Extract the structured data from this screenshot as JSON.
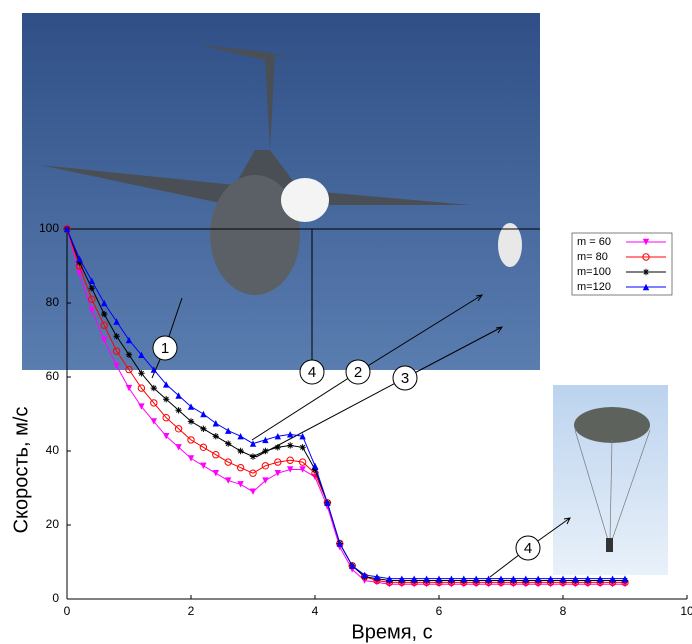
{
  "chart_data": {
    "type": "line",
    "xlabel": "Время, с",
    "ylabel": "Скорость, м/с",
    "xlim": [
      0,
      10
    ],
    "ylim": [
      0,
      100
    ],
    "xticks": [
      0,
      2,
      4,
      6,
      8,
      10
    ],
    "yticks": [
      0,
      20,
      40,
      60,
      80,
      100
    ],
    "legend": "upper right",
    "annotations": [
      "1",
      "2",
      "3",
      "4",
      "4"
    ],
    "x": [
      0,
      0.2,
      0.4,
      0.6,
      0.8,
      1,
      1.2,
      1.4,
      1.6,
      1.8,
      2,
      2.2,
      2.4,
      2.6,
      2.8,
      3,
      3.2,
      3.4,
      3.6,
      3.8,
      4,
      4.2,
      4.4,
      4.6,
      4.8,
      5,
      5.2,
      5.4,
      5.6,
      5.8,
      6,
      6.2,
      6.4,
      6.6,
      6.8,
      7,
      7.2,
      7.4,
      7.6,
      7.8,
      8,
      8.2,
      8.4,
      8.6,
      8.8,
      9
    ],
    "series": [
      {
        "name": "m = 60",
        "color": "#ff00ff",
        "marker": "v",
        "values": [
          100,
          88,
          78,
          70,
          63,
          57,
          52,
          48,
          44,
          41,
          38,
          36,
          34,
          32,
          31,
          29,
          32,
          34,
          35,
          35,
          33,
          25,
          14,
          8,
          5,
          4.5,
          4,
          4,
          4,
          4,
          4,
          4,
          4,
          4,
          4,
          4,
          4,
          4,
          4,
          4,
          4,
          4,
          4,
          4,
          4,
          4
        ]
      },
      {
        "name": "m= 80",
        "color": "#ff0000",
        "marker": "o",
        "values": [
          100,
          90,
          81,
          74,
          67,
          62,
          57,
          53,
          49,
          46,
          43,
          41,
          39,
          37,
          35.5,
          34,
          36,
          37,
          37.5,
          37,
          34,
          26,
          15,
          9,
          6,
          5,
          4.5,
          4.5,
          4.5,
          4.5,
          4.5,
          4.5,
          4.5,
          4.5,
          4.5,
          4.5,
          4.5,
          4.5,
          4.5,
          4.5,
          4.5,
          4.5,
          4.5,
          4.5,
          4.5,
          4.5
        ]
      },
      {
        "name": "m=100",
        "color": "#000000",
        "marker": "*",
        "values": [
          100,
          91,
          84,
          77,
          71,
          66,
          61,
          57,
          54,
          51,
          48,
          46,
          44,
          42,
          40,
          38.5,
          40,
          41,
          41.5,
          41,
          35,
          26,
          15,
          9,
          6,
          5.5,
          5,
          5,
          5,
          5,
          5,
          5,
          5,
          5,
          5,
          5,
          5,
          5,
          5,
          5,
          5,
          5,
          5,
          5,
          5,
          5
        ]
      },
      {
        "name": "m=120",
        "color": "#0000ff",
        "marker": "^",
        "values": [
          100,
          92,
          86,
          80,
          75,
          70,
          66,
          62,
          58,
          55,
          52,
          50,
          47.5,
          45.5,
          44,
          42,
          43,
          44,
          44.5,
          44,
          36,
          26,
          15,
          9,
          6.5,
          6,
          5.5,
          5.5,
          5.5,
          5.5,
          5.5,
          5.5,
          5.5,
          5.5,
          5.5,
          5.5,
          5.5,
          5.5,
          5.5,
          5.5,
          5.5,
          5.5,
          5.5,
          5.5,
          5.5,
          5.5
        ]
      }
    ]
  }
}
